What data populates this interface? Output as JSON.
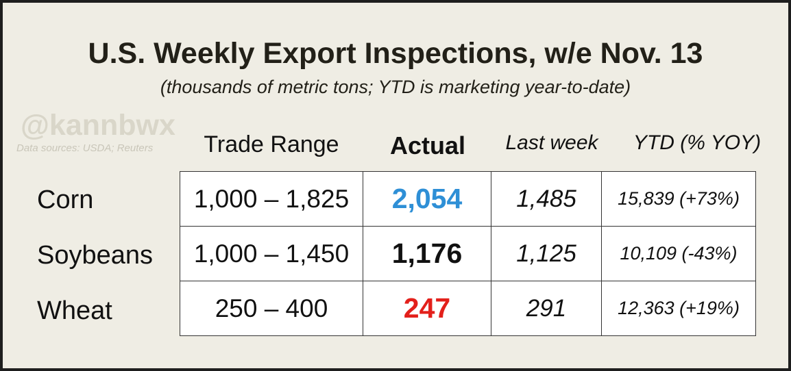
{
  "title": "U.S. Weekly Export Inspections, w/e Nov. 13",
  "subtitle": "(thousands of metric tons; YTD is marketing year-to-date)",
  "watermark": "@kannbwx",
  "sources": "Data sources: USDA; Reuters",
  "colors": {
    "background": "#efede4",
    "corn_actual": "#2e8fd6",
    "soybeans_actual": "#111111",
    "wheat_actual": "#e3201b"
  },
  "chart_data": {
    "type": "table",
    "columns": [
      "Trade Range",
      "Actual",
      "Last week",
      "YTD (% YOY)"
    ],
    "rows": [
      {
        "commodity": "Corn",
        "trade_range": "1,000 – 1,825",
        "actual": "2,054",
        "last_week": "1,485",
        "ytd": "15,839 (+73%)"
      },
      {
        "commodity": "Soybeans",
        "trade_range": "1,000 – 1,450",
        "actual": "1,176",
        "last_week": "1,125",
        "ytd": "10,109 (-43%)"
      },
      {
        "commodity": "Wheat",
        "trade_range": "250 – 400",
        "actual": "247",
        "last_week": "291",
        "ytd": "12,363 (+19%)"
      }
    ]
  }
}
